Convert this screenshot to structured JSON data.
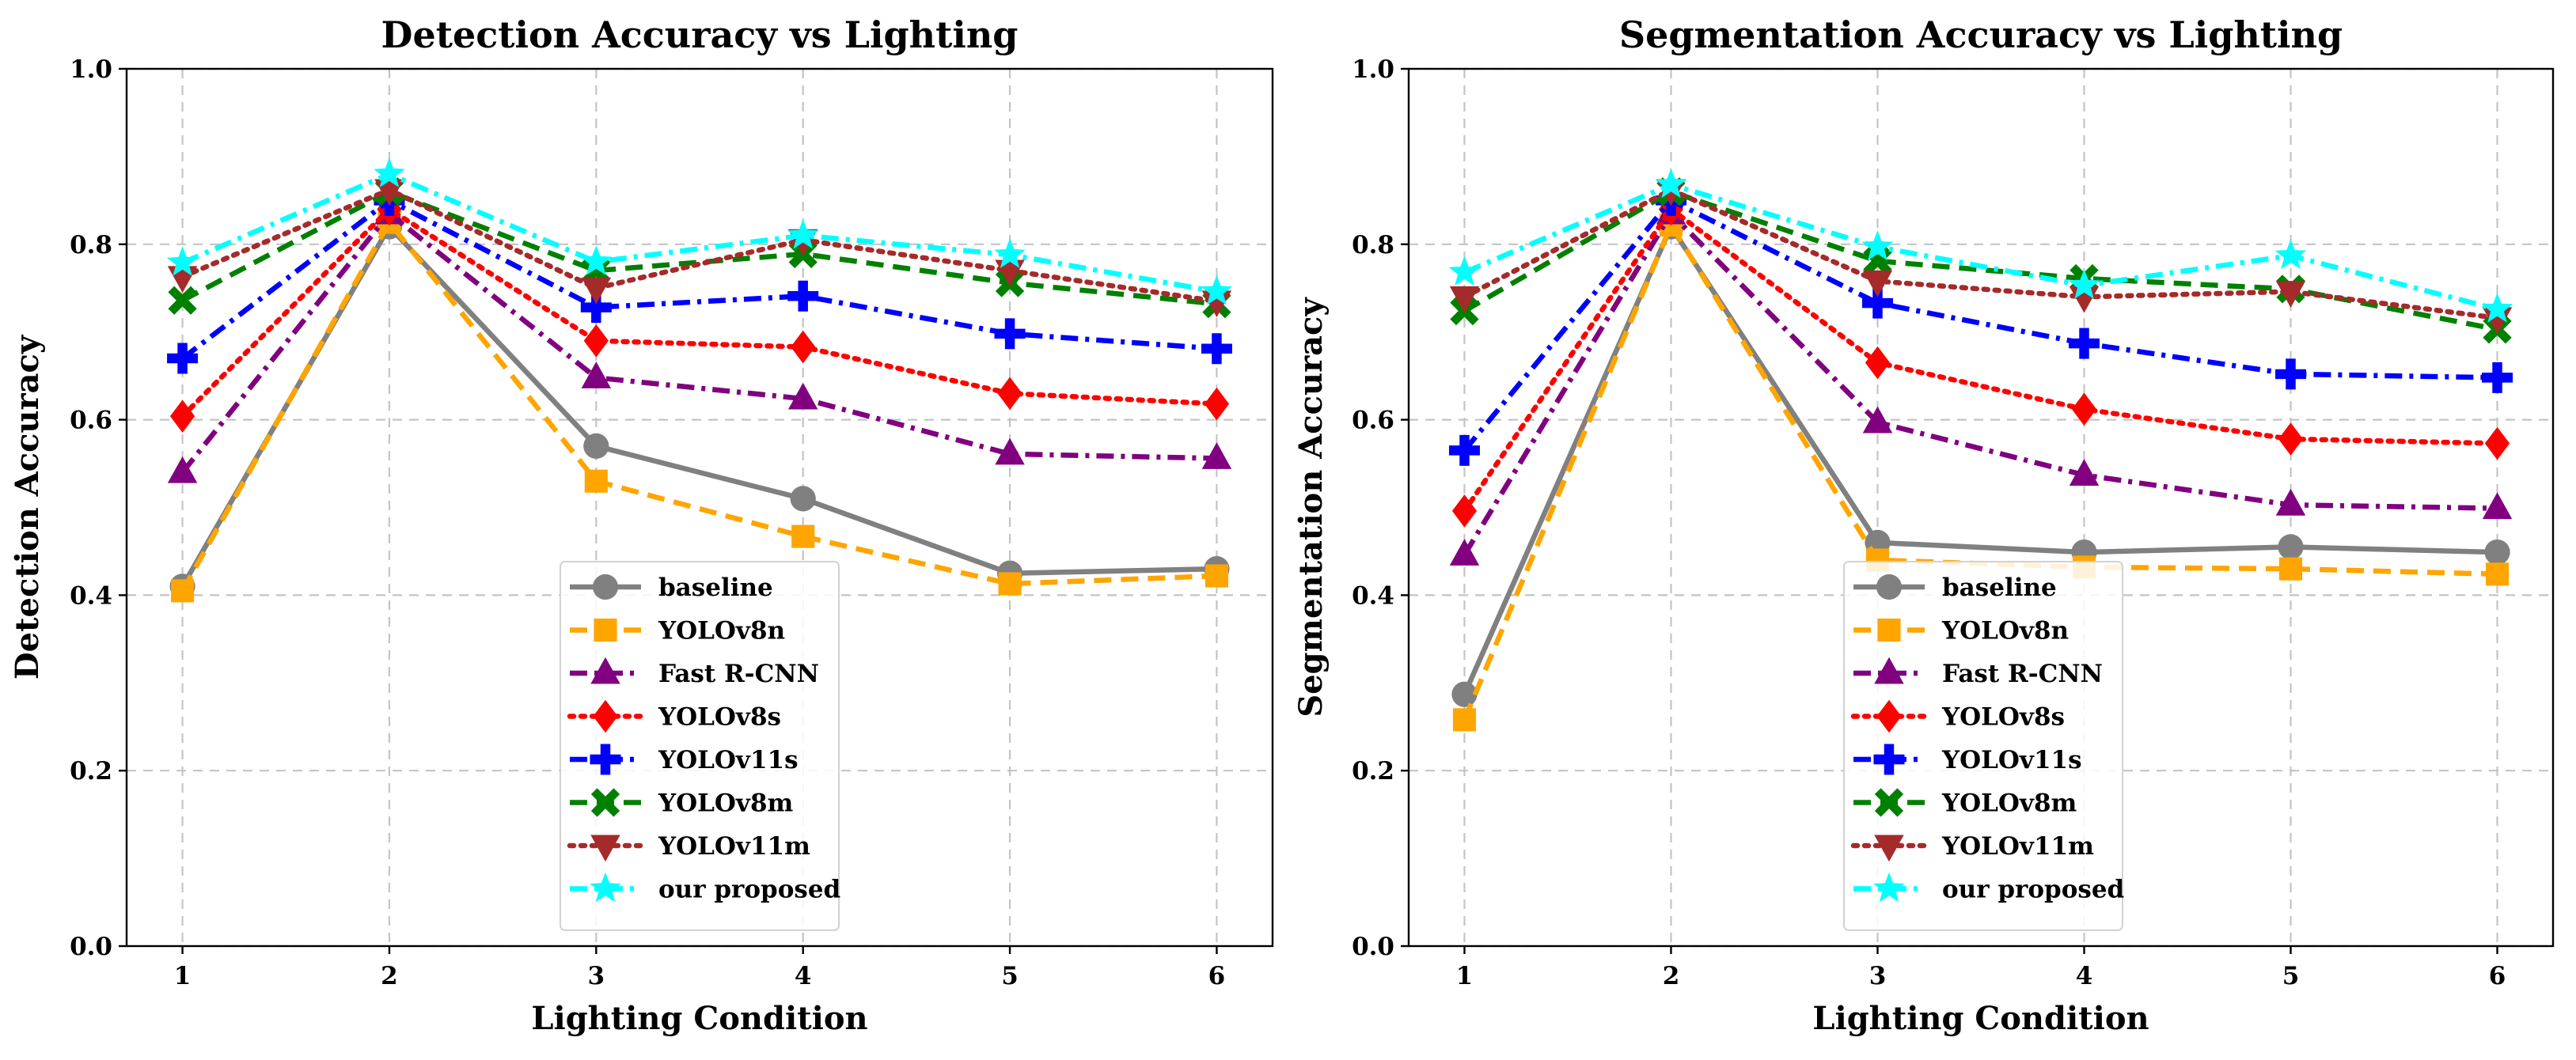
{
  "chart_data": [
    {
      "type": "line",
      "title": "Detection Accuracy vs Lighting",
      "xlabel": "Lighting Condition",
      "ylabel": "Detection Accuracy",
      "x": [
        1,
        2,
        3,
        4,
        5,
        6
      ],
      "x_tick_labels": [
        "1",
        "2",
        "3",
        "4",
        "5",
        "6"
      ],
      "y_tick_labels": [
        "0.0",
        "0.2",
        "0.4",
        "0.6",
        "0.8",
        "1.0"
      ],
      "ylim": [
        0,
        1
      ],
      "grid": true,
      "legend_location": "lower center",
      "series": [
        {
          "name": "baseline",
          "values": [
            0.41,
            0.82,
            0.57,
            0.51,
            0.425,
            0.43
          ]
        },
        {
          "name": "YOLOv8n",
          "values": [
            0.405,
            0.825,
            0.53,
            0.467,
            0.413,
            0.422
          ]
        },
        {
          "name": "Fast R-CNN",
          "values": [
            0.54,
            0.835,
            0.648,
            0.624,
            0.561,
            0.556
          ]
        },
        {
          "name": "YOLOv8s",
          "values": [
            0.604,
            0.84,
            0.69,
            0.683,
            0.63,
            0.618
          ]
        },
        {
          "name": "YOLOv11s",
          "values": [
            0.67,
            0.85,
            0.728,
            0.741,
            0.698,
            0.681
          ]
        },
        {
          "name": "YOLOv8m",
          "values": [
            0.736,
            0.86,
            0.77,
            0.789,
            0.756,
            0.732
          ]
        },
        {
          "name": "YOLOv11m",
          "values": [
            0.763,
            0.862,
            0.75,
            0.805,
            0.77,
            0.735
          ]
        },
        {
          "name": "our proposed",
          "values": [
            0.779,
            0.88,
            0.78,
            0.81,
            0.788,
            0.746
          ]
        }
      ]
    },
    {
      "type": "line",
      "title": "Segmentation Accuracy vs Lighting",
      "xlabel": "Lighting Condition",
      "ylabel": "Segmentation Accuracy",
      "x": [
        1,
        2,
        3,
        4,
        5,
        6
      ],
      "x_tick_labels": [
        "1",
        "2",
        "3",
        "4",
        "5",
        "6"
      ],
      "y_tick_labels": [
        "0.0",
        "0.2",
        "0.4",
        "0.6",
        "0.8",
        "1.0"
      ],
      "ylim": [
        0,
        1
      ],
      "grid": true,
      "legend_location": "lower center",
      "series": [
        {
          "name": "baseline",
          "values": [
            0.287,
            0.82,
            0.46,
            0.449,
            0.455,
            0.449
          ]
        },
        {
          "name": "YOLOv8n",
          "values": [
            0.258,
            0.822,
            0.44,
            0.432,
            0.43,
            0.424
          ]
        },
        {
          "name": "Fast R-CNN",
          "values": [
            0.446,
            0.835,
            0.597,
            0.537,
            0.503,
            0.499
          ]
        },
        {
          "name": "YOLOv8s",
          "values": [
            0.496,
            0.84,
            0.665,
            0.612,
            0.578,
            0.573
          ]
        },
        {
          "name": "YOLOv11s",
          "values": [
            0.565,
            0.85,
            0.733,
            0.687,
            0.652,
            0.648
          ]
        },
        {
          "name": "YOLOv8m",
          "values": [
            0.724,
            0.86,
            0.781,
            0.761,
            0.749,
            0.703
          ]
        },
        {
          "name": "YOLOv11m",
          "values": [
            0.74,
            0.862,
            0.758,
            0.74,
            0.746,
            0.716
          ]
        },
        {
          "name": "our proposed",
          "values": [
            0.768,
            0.868,
            0.797,
            0.753,
            0.787,
            0.726
          ]
        }
      ]
    }
  ],
  "series_styles": [
    {
      "color": "#808080",
      "marker": "circle",
      "dash": "solid"
    },
    {
      "color": "#FFA500",
      "marker": "square",
      "dash": "dashed"
    },
    {
      "color": "#800080",
      "marker": "triangle-up",
      "dash": "dashdot"
    },
    {
      "color": "#FF0000",
      "marker": "diamond",
      "dash": "dotted"
    },
    {
      "color": "#0000FF",
      "marker": "plus",
      "dash": "dashdot"
    },
    {
      "color": "#008000",
      "marker": "x",
      "dash": "dashed"
    },
    {
      "color": "#A52A2A",
      "marker": "triangle-down",
      "dash": "dotted"
    },
    {
      "color": "#00FFFF",
      "marker": "star",
      "dash": "dashdot"
    }
  ]
}
